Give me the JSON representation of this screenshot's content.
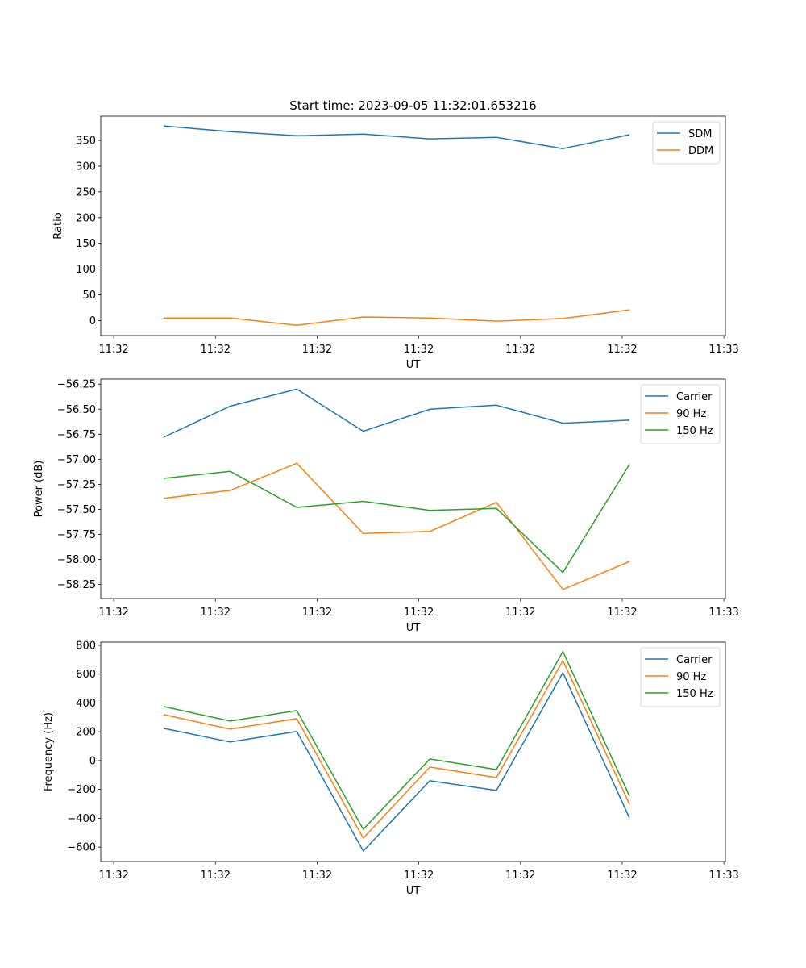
{
  "chart_data": [
    {
      "type": "line",
      "title": "Start time: 2023-09-05 11:32:01.653216",
      "xlabel": "UT",
      "ylabel": "Ratio",
      "x": [
        0,
        1,
        2,
        3,
        4,
        5,
        6,
        7
      ],
      "xlim": [
        -0.945,
        8.441
      ],
      "xticks": [
        -0.75,
        0.778,
        2.306,
        3.834,
        5.362,
        6.89,
        8.418
      ],
      "xtick_labels": [
        "11:32",
        "11:32",
        "11:32",
        "11:32",
        "11:32",
        "11:32",
        "11:33"
      ],
      "ylim": [
        -29,
        397
      ],
      "yticks": [
        0,
        50,
        100,
        150,
        200,
        250,
        300,
        350
      ],
      "ytick_labels": [
        "0",
        "50",
        "100",
        "150",
        "200",
        "250",
        "300",
        "350"
      ],
      "legend": "top-right",
      "series": [
        {
          "name": "SDM",
          "color": "#1f77b4",
          "values": [
            378,
            367,
            359,
            362,
            353,
            356,
            334,
            361
          ]
        },
        {
          "name": "DDM",
          "color": "#ff7f0e",
          "values": [
            5,
            5,
            -9,
            7,
            5,
            -1,
            4,
            21
          ]
        }
      ]
    },
    {
      "type": "line",
      "title": "",
      "xlabel": "UT",
      "ylabel": "Power (dB)",
      "x": [
        0,
        1,
        2,
        3,
        4,
        5,
        6,
        7
      ],
      "xlim": [
        -0.945,
        8.441
      ],
      "xticks": [
        -0.75,
        0.778,
        2.306,
        3.834,
        5.362,
        6.89,
        8.418
      ],
      "xtick_labels": [
        "11:32",
        "11:32",
        "11:32",
        "11:32",
        "11:32",
        "11:32",
        "11:33"
      ],
      "ylim": [
        -58.39,
        -56.2
      ],
      "yticks": [
        -58.25,
        -58.0,
        -57.75,
        -57.5,
        -57.25,
        -57.0,
        -56.75,
        -56.5,
        -56.25
      ],
      "ytick_labels": [
        "−58.25",
        "−58.00",
        "−57.75",
        "−57.50",
        "−57.25",
        "−57.00",
        "−56.75",
        "−56.50",
        "−56.25"
      ],
      "legend": "top-right",
      "series": [
        {
          "name": "Carrier",
          "color": "#1f77b4",
          "values": [
            -56.78,
            -56.47,
            -56.3,
            -56.72,
            -56.5,
            -56.46,
            -56.64,
            -56.61
          ]
        },
        {
          "name": "90 Hz",
          "color": "#ff7f0e",
          "values": [
            -57.39,
            -57.31,
            -57.04,
            -57.74,
            -57.72,
            -57.43,
            -58.3,
            -58.02
          ]
        },
        {
          "name": "150 Hz",
          "color": "#2ca02c",
          "values": [
            -57.19,
            -57.12,
            -57.48,
            -57.42,
            -57.51,
            -57.49,
            -58.13,
            -57.05
          ]
        }
      ]
    },
    {
      "type": "line",
      "title": "",
      "xlabel": "UT",
      "ylabel": "Frequency (Hz)",
      "x": [
        0,
        1,
        2,
        3,
        4,
        5,
        6,
        7
      ],
      "xlim": [
        -0.945,
        8.441
      ],
      "xticks": [
        -0.75,
        0.778,
        2.306,
        3.834,
        5.362,
        6.89,
        8.418
      ],
      "xtick_labels": [
        "11:32",
        "11:32",
        "11:32",
        "11:32",
        "11:32",
        "11:32",
        "11:33"
      ],
      "ylim": [
        -700,
        822
      ],
      "yticks": [
        -600,
        -400,
        -200,
        0,
        200,
        400,
        600,
        800
      ],
      "ytick_labels": [
        "−600",
        "−400",
        "−200",
        "0",
        "200",
        "400",
        "600",
        "800"
      ],
      "legend": "top-right",
      "series": [
        {
          "name": "Carrier",
          "color": "#1f77b4",
          "values": [
            224,
            129,
            202,
            -627,
            -140,
            -207,
            610,
            -398
          ]
        },
        {
          "name": "90 Hz",
          "color": "#ff7f0e",
          "values": [
            319,
            218,
            291,
            -538,
            -45,
            -118,
            694,
            -302
          ]
        },
        {
          "name": "150 Hz",
          "color": "#2ca02c",
          "values": [
            375,
            274,
            347,
            -476,
            11,
            -62,
            756,
            -246
          ]
        }
      ]
    }
  ]
}
